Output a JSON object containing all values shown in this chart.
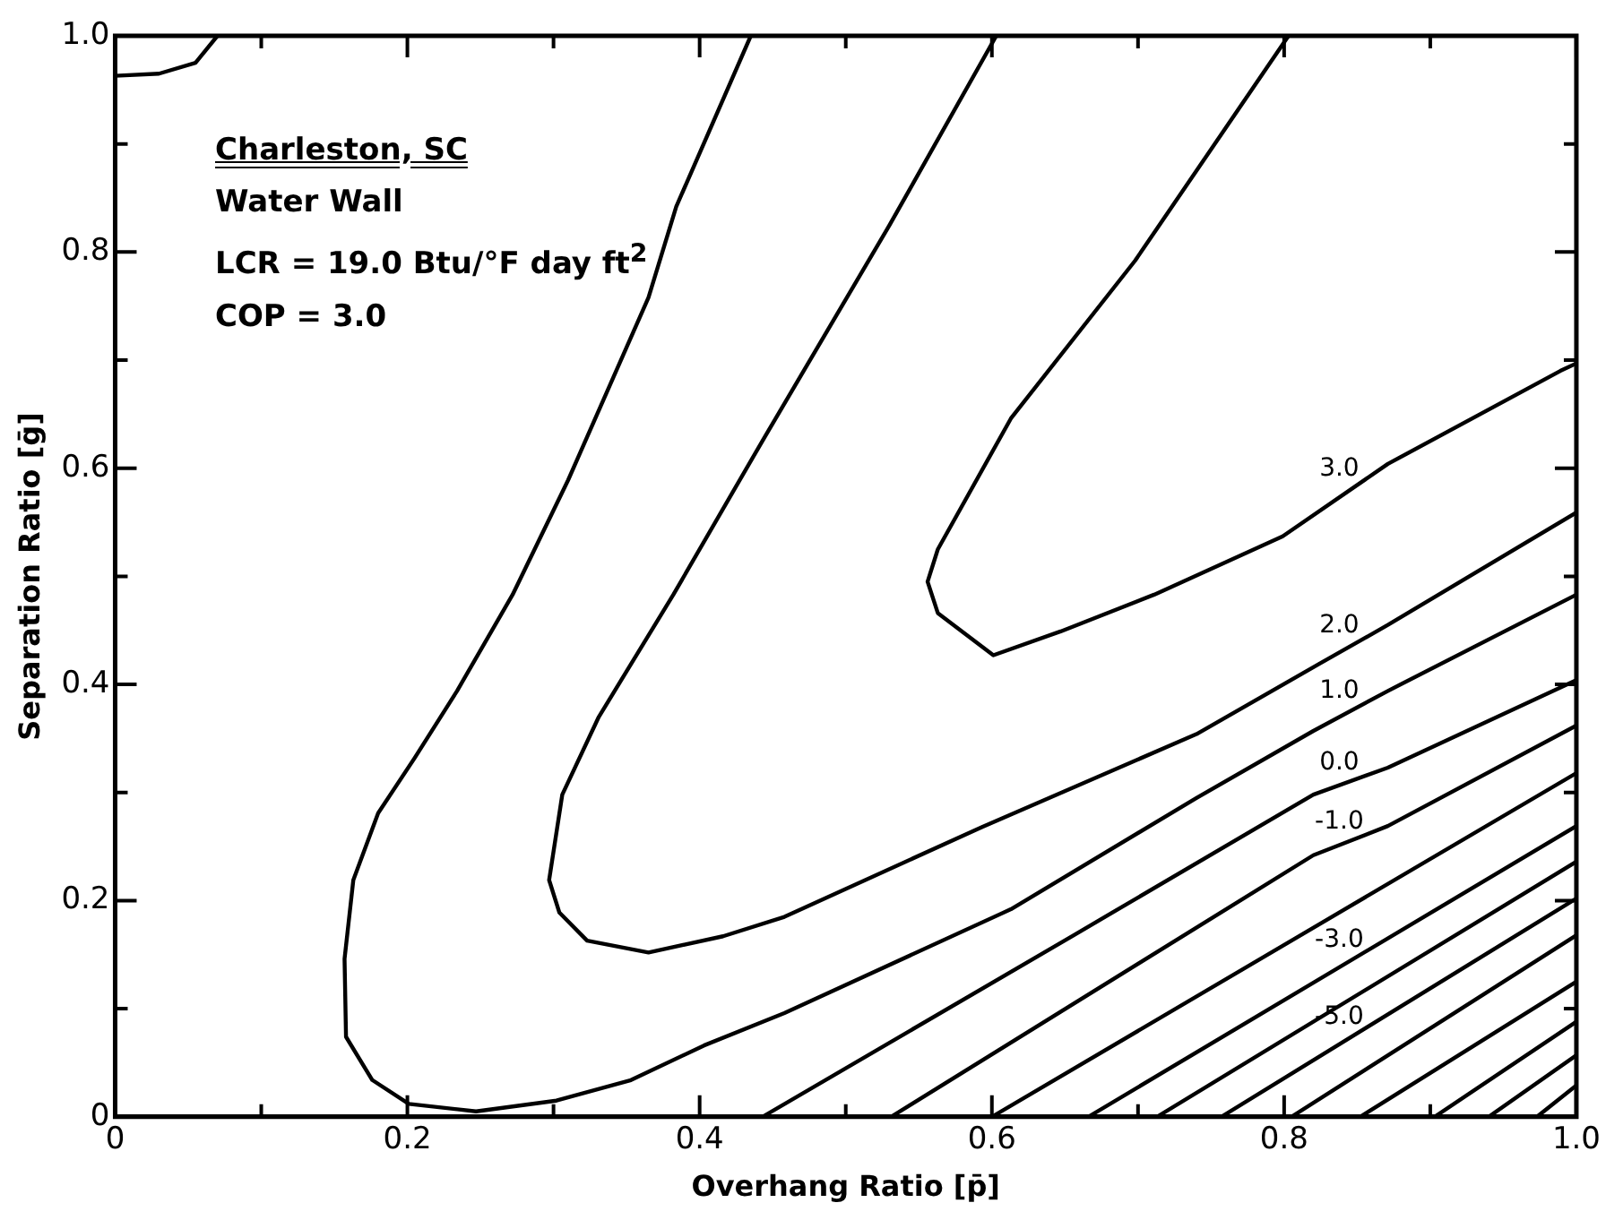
{
  "chart_data": {
    "type": "line",
    "xlabel": "Overhang Ratio [p̄]",
    "ylabel": "Separation Ratio [ḡ]",
    "annotations": [
      "Charleston, SC",
      "Water Wall",
      "LCR = 19.0 Btu/°F day ft$^{2}$",
      "COP = 3.0"
    ],
    "xlim": [
      0,
      1
    ],
    "ylim": [
      0,
      1
    ],
    "xticks": [
      0,
      {
        "value": 0.1,
        "label": null
      },
      0.2,
      {
        "value": 0.3,
        "label": null
      },
      0.4,
      {
        "value": 0.5,
        "label": null
      },
      0.6,
      {
        "value": 0.7,
        "label": null
      },
      0.8,
      {
        "value": 0.9,
        "label": null
      },
      {
        "value": 1,
        "label": "1.0"
      }
    ],
    "yticks": [
      0,
      {
        "value": 0.1,
        "label": null
      },
      0.2,
      {
        "value": 0.3,
        "label": null
      },
      0.4,
      {
        "value": 0.5,
        "label": null
      },
      0.6,
      {
        "value": 0.7,
        "label": null
      },
      0.8,
      {
        "value": 0.9,
        "label": null
      },
      {
        "value": 1,
        "label": "1.0"
      }
    ],
    "grid": false,
    "legend": false,
    "marker": "none",
    "line_style": "solid",
    "series": [
      {
        "color": "#000000",
        "x": [
          0,
          0.03,
          0.055,
          0.07
        ],
        "values": [
          0.963,
          0.965,
          0.975,
          1.0
        ]
      },
      {
        "name": "3.0",
        "color": "#000000",
        "x": [
          0.803,
          0.698,
          0.613,
          0.563,
          0.556,
          0.563,
          0.601,
          0.647,
          0.711,
          0.799,
          0.871,
          0.989,
          1.0
        ],
        "values": [
          1.0,
          0.792,
          0.646,
          0.525,
          0.495,
          0.466,
          0.427,
          0.449,
          0.483,
          0.537,
          0.604,
          0.69,
          0.697
        ]
      },
      {
        "name": "2.0",
        "color": "#000000",
        "x": [
          0.603,
          0.53,
          0.445,
          0.382,
          0.331,
          0.306,
          0.297,
          0.304,
          0.323,
          0.365,
          0.416,
          0.458,
          0.593,
          0.74,
          0.824,
          0.871,
          1.0
        ],
        "values": [
          1.0,
          0.825,
          0.63,
          0.483,
          0.37,
          0.298,
          0.219,
          0.189,
          0.163,
          0.152,
          0.167,
          0.185,
          0.268,
          0.354,
          0.419,
          0.455,
          0.559
        ]
      },
      {
        "name": "1.0",
        "color": "#000000",
        "x": [
          0.435,
          0.384,
          0.365,
          0.31,
          0.272,
          0.234,
          0.205,
          0.18,
          0.163,
          0.157,
          0.158,
          0.176,
          0.201,
          0.247,
          0.302,
          0.353,
          0.403,
          0.458,
          0.613,
          0.74,
          0.82,
          0.871,
          1.0
        ],
        "values": [
          1.0,
          0.842,
          0.758,
          0.589,
          0.483,
          0.394,
          0.332,
          0.281,
          0.219,
          0.146,
          0.074,
          0.034,
          0.012,
          0.005,
          0.015,
          0.034,
          0.066,
          0.096,
          0.192,
          0.295,
          0.357,
          0.394,
          0.483
        ]
      },
      {
        "name": "0.0",
        "color": "#000000",
        "x": [
          0.443,
          0.656,
          0.82,
          0.871,
          1.0
        ],
        "values": [
          0,
          0.168,
          0.298,
          0.323,
          0.404
        ]
      },
      {
        "name": "-1.0",
        "color": "#000000",
        "x": [
          0.531,
          0.82,
          0.871,
          1.0
        ],
        "values": [
          0,
          0.242,
          0.269,
          0.362
        ]
      },
      {
        "color": "#000000",
        "x": [
          0.6,
          1.0
        ],
        "values": [
          0,
          0.318
        ]
      },
      {
        "name": "-3.0",
        "color": "#000000",
        "x": [
          0.666,
          1.0
        ],
        "values": [
          0,
          0.269
        ]
      },
      {
        "color": "#000000",
        "x": [
          0.713,
          1.0
        ],
        "values": [
          0,
          0.236
        ]
      },
      {
        "name": "-5.0",
        "color": "#000000",
        "x": [
          0.757,
          1.0
        ],
        "values": [
          0,
          0.202
        ]
      },
      {
        "color": "#000000",
        "x": [
          0.805,
          1.0
        ],
        "values": [
          0,
          0.168
        ]
      },
      {
        "color": "#000000",
        "x": [
          0.852,
          1.0
        ],
        "values": [
          0,
          0.125
        ]
      },
      {
        "color": "#000000",
        "x": [
          0.903,
          1.0
        ],
        "values": [
          0,
          0.088
        ]
      },
      {
        "color": "#000000",
        "x": [
          0.94,
          1.0
        ],
        "values": [
          0,
          0.057
        ]
      },
      {
        "color": "#000000",
        "x": [
          0.973,
          1.0
        ],
        "values": [
          0,
          0.029
        ]
      }
    ]
  }
}
